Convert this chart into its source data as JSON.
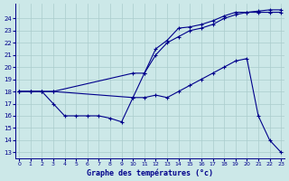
{
  "bg_color": "#cce8e8",
  "grid_color": "#aacccc",
  "line_color": "#00008b",
  "title": "Graphe des températures (°c)",
  "xlim": [
    -0.3,
    23.3
  ],
  "ylim": [
    12.5,
    25.2
  ],
  "yticks": [
    13,
    14,
    15,
    16,
    17,
    18,
    19,
    20,
    21,
    22,
    23,
    24
  ],
  "xticks": [
    0,
    1,
    2,
    3,
    4,
    5,
    6,
    7,
    8,
    9,
    10,
    11,
    12,
    13,
    14,
    15,
    16,
    17,
    18,
    19,
    20,
    21,
    22,
    23
  ],
  "series": [
    {
      "x": [
        0,
        1,
        2,
        3,
        4,
        5,
        6,
        7,
        8,
        9,
        10,
        11,
        12,
        13,
        14,
        15,
        16,
        17,
        18,
        19,
        20,
        21,
        22,
        23
      ],
      "y": [
        18,
        18,
        18,
        17,
        16,
        16,
        16,
        16,
        15.8,
        15.5,
        17.5,
        17.5,
        17.7,
        17.5,
        18.0,
        18.5,
        19.0,
        19.5,
        20.0,
        20.5,
        20.7,
        16.0,
        14.0,
        13.0
      ]
    },
    {
      "x": [
        0,
        1,
        2,
        3,
        10,
        11,
        12,
        13,
        14,
        15,
        16,
        17,
        18,
        19,
        20,
        21,
        22,
        23
      ],
      "y": [
        18,
        18,
        18,
        18,
        19.5,
        19.5,
        21.5,
        22.2,
        23.2,
        23.3,
        23.5,
        23.8,
        24.2,
        24.5,
        24.5,
        24.6,
        24.7,
        24.7
      ]
    },
    {
      "x": [
        0,
        1,
        2,
        3,
        10,
        11,
        12,
        13,
        14,
        15,
        16,
        17,
        18,
        19,
        20,
        21,
        22,
        23
      ],
      "y": [
        18,
        18,
        18,
        18,
        17.5,
        19.5,
        21.0,
        22.0,
        22.5,
        23.0,
        23.2,
        23.5,
        24.0,
        24.3,
        24.5,
        24.5,
        24.5,
        24.5
      ]
    }
  ]
}
